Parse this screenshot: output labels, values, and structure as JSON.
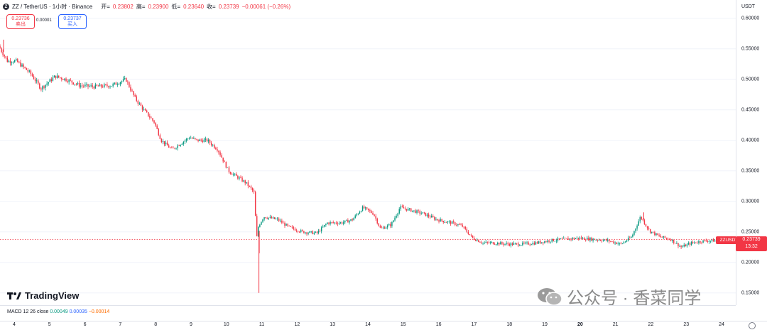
{
  "header": {
    "symbol_icon": "Z",
    "title": "ZZ / TetherUS · 1小时 · Binance",
    "open_label": "开=",
    "open_value": "0.23802",
    "high_label": "高=",
    "high_value": "0.23900",
    "low_label": "低=",
    "low_value": "0.23640",
    "close_label": "收=",
    "close_value": "0.23739",
    "change": "−0.00061 (−0.26%)"
  },
  "trade": {
    "sell_price": "0.23736",
    "sell_label": "卖出",
    "spread": "0.00001",
    "buy_price": "0.23737",
    "buy_label": "买入"
  },
  "price_axis": {
    "currency": "USDT",
    "ticks": [
      "0.60000",
      "0.55000",
      "0.50000",
      "0.45000",
      "0.40000",
      "0.35000",
      "0.30000",
      "0.25000",
      "0.20000",
      "0.15000"
    ]
  },
  "last_price": {
    "symbol_tag": "ZZUSDT",
    "price": "0.23739",
    "countdown": "13:32"
  },
  "macd": {
    "label": "MACD 12 26 close",
    "v1": "0.00049",
    "v2": "0.00035",
    "v3": "−0.00014"
  },
  "time_axis": {
    "dates": [
      "4",
      "5",
      "6",
      "7",
      "8",
      "9",
      "10",
      "11",
      "12",
      "13",
      "14",
      "15",
      "16",
      "17",
      "18",
      "19",
      "20",
      "21",
      "22",
      "23",
      "24"
    ],
    "bold_dates": [
      "20"
    ]
  },
  "branding": {
    "logo_text": "TradingView",
    "watermark_text": "公众号 · 香菜同学"
  },
  "colors": {
    "up": "#089981",
    "down": "#f23645",
    "accent": "#2962ff"
  },
  "chart_data": {
    "type": "candlestick",
    "title": "ZZ / TetherUS · 1小时 · Binance",
    "ylabel": "USDT",
    "ylim": [
      0.13,
      0.63
    ],
    "x_range_days": [
      3.6,
      24.4
    ],
    "anchors": [
      [
        3.6,
        0.555
      ],
      [
        3.85,
        0.53
      ],
      [
        4.1,
        0.53
      ],
      [
        4.5,
        0.51
      ],
      [
        4.8,
        0.485
      ],
      [
        5.2,
        0.505
      ],
      [
        5.5,
        0.5
      ],
      [
        5.9,
        0.49
      ],
      [
        6.3,
        0.488
      ],
      [
        6.8,
        0.49
      ],
      [
        7.2,
        0.5
      ],
      [
        7.45,
        0.47
      ],
      [
        7.7,
        0.45
      ],
      [
        8.0,
        0.43
      ],
      [
        8.2,
        0.4
      ],
      [
        8.5,
        0.385
      ],
      [
        8.75,
        0.395
      ],
      [
        9.0,
        0.405
      ],
      [
        9.2,
        0.4
      ],
      [
        9.5,
        0.4
      ],
      [
        9.8,
        0.385
      ],
      [
        10.1,
        0.35
      ],
      [
        10.35,
        0.34
      ],
      [
        10.6,
        0.33
      ],
      [
        10.82,
        0.315
      ],
      [
        10.9,
        0.24
      ],
      [
        10.95,
        0.26
      ],
      [
        11.1,
        0.275
      ],
      [
        11.5,
        0.27
      ],
      [
        11.8,
        0.258
      ],
      [
        12.2,
        0.25
      ],
      [
        12.6,
        0.248
      ],
      [
        12.9,
        0.265
      ],
      [
        13.3,
        0.265
      ],
      [
        13.6,
        0.27
      ],
      [
        13.9,
        0.29
      ],
      [
        14.2,
        0.28
      ],
      [
        14.4,
        0.255
      ],
      [
        14.7,
        0.262
      ],
      [
        14.95,
        0.29
      ],
      [
        15.3,
        0.285
      ],
      [
        15.6,
        0.28
      ],
      [
        16.0,
        0.27
      ],
      [
        16.4,
        0.265
      ],
      [
        16.7,
        0.26
      ],
      [
        17.0,
        0.24
      ],
      [
        17.3,
        0.232
      ],
      [
        17.6,
        0.232
      ],
      [
        18.0,
        0.23
      ],
      [
        18.4,
        0.23
      ],
      [
        18.8,
        0.232
      ],
      [
        19.2,
        0.236
      ],
      [
        19.6,
        0.238
      ],
      [
        20.0,
        0.24
      ],
      [
        20.4,
        0.238
      ],
      [
        20.8,
        0.236
      ],
      [
        21.2,
        0.23
      ],
      [
        21.5,
        0.242
      ],
      [
        21.75,
        0.275
      ],
      [
        22.0,
        0.252
      ],
      [
        22.3,
        0.242
      ],
      [
        22.6,
        0.238
      ],
      [
        22.9,
        0.225
      ],
      [
        23.2,
        0.232
      ],
      [
        23.5,
        0.235
      ],
      [
        23.9,
        0.236
      ],
      [
        24.4,
        0.237
      ]
    ],
    "spikes": [
      {
        "day": 10.92,
        "low": 0.15
      },
      {
        "day": 10.93,
        "low": 0.215
      },
      {
        "day": 21.8,
        "high": 0.282
      },
      {
        "day": 3.7,
        "high": 0.565
      }
    ],
    "last_price": 0.23739
  }
}
